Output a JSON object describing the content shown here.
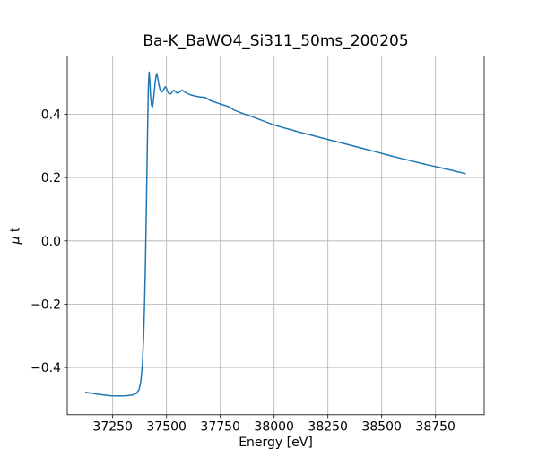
{
  "chart_data": {
    "type": "line",
    "title": "Ba-K_BaWO4_Si311_50ms_200205",
    "xlabel": "Energy [eV]",
    "ylabel": "μ t",
    "ylabel_parts": {
      "mu": "μ",
      "rest": " t"
    },
    "xlim": [
      37038.75,
      38976.25
    ],
    "ylim": [
      -0.549,
      0.584
    ],
    "xticks": [
      37250,
      37500,
      37750,
      38000,
      38250,
      38500,
      38750
    ],
    "xtick_labels": [
      "37250",
      "37500",
      "37750",
      "38000",
      "38250",
      "38500",
      "38750"
    ],
    "yticks": [
      -0.4,
      -0.2,
      0.0,
      0.2,
      0.4
    ],
    "ytick_labels": [
      "−0.4",
      "−0.2",
      "0.0",
      "0.2",
      "0.4"
    ],
    "grid": true,
    "legend": false,
    "line_color": "#1f77b4",
    "line_width": 1.5,
    "grid_color": "#b0b0b0",
    "spine_color": "#000000",
    "background_color": "#ffffff",
    "series": [
      {
        "name": "mu_t_vs_energy",
        "points": [
          [
            37125,
            -0.478
          ],
          [
            37160,
            -0.482
          ],
          [
            37200,
            -0.486
          ],
          [
            37240,
            -0.489
          ],
          [
            37280,
            -0.49
          ],
          [
            37312,
            -0.489
          ],
          [
            37340,
            -0.487
          ],
          [
            37360,
            -0.482
          ],
          [
            37372,
            -0.47
          ],
          [
            37381,
            -0.443
          ],
          [
            37388,
            -0.39
          ],
          [
            37393,
            -0.315
          ],
          [
            37398,
            -0.2
          ],
          [
            37402,
            -0.07
          ],
          [
            37406,
            0.08
          ],
          [
            37410,
            0.26
          ],
          [
            37413,
            0.39
          ],
          [
            37416,
            0.49
          ],
          [
            37419,
            0.533
          ],
          [
            37422,
            0.51
          ],
          [
            37426,
            0.458
          ],
          [
            37430,
            0.43
          ],
          [
            37434,
            0.422
          ],
          [
            37438,
            0.435
          ],
          [
            37443,
            0.47
          ],
          [
            37448,
            0.505
          ],
          [
            37452,
            0.523
          ],
          [
            37455,
            0.526
          ],
          [
            37459,
            0.515
          ],
          [
            37464,
            0.495
          ],
          [
            37470,
            0.478
          ],
          [
            37476,
            0.47
          ],
          [
            37482,
            0.472
          ],
          [
            37488,
            0.48
          ],
          [
            37494,
            0.487
          ],
          [
            37499,
            0.482
          ],
          [
            37505,
            0.472
          ],
          [
            37511,
            0.4655
          ],
          [
            37517,
            0.4635
          ],
          [
            37523,
            0.467
          ],
          [
            37529,
            0.473
          ],
          [
            37535,
            0.476
          ],
          [
            37541,
            0.472
          ],
          [
            37547,
            0.4675
          ],
          [
            37553,
            0.466
          ],
          [
            37560,
            0.47
          ],
          [
            37568,
            0.4745
          ],
          [
            37575,
            0.4755
          ],
          [
            37583,
            0.4715
          ],
          [
            37591,
            0.4675
          ],
          [
            37599,
            0.465
          ],
          [
            37613,
            0.461
          ],
          [
            37628,
            0.458
          ],
          [
            37643,
            0.456
          ],
          [
            37658,
            0.4545
          ],
          [
            37673,
            0.4535
          ],
          [
            37685,
            0.451
          ],
          [
            37698,
            0.445
          ],
          [
            37713,
            0.4405
          ],
          [
            37728,
            0.4375
          ],
          [
            37748,
            0.4325
          ],
          [
            37768,
            0.4285
          ],
          [
            37790,
            0.4235
          ],
          [
            37812,
            0.414
          ],
          [
            37836,
            0.407
          ],
          [
            37860,
            0.401
          ],
          [
            37885,
            0.3955
          ],
          [
            37910,
            0.389
          ],
          [
            37935,
            0.3825
          ],
          [
            37960,
            0.376
          ],
          [
            38000,
            0.366
          ],
          [
            38040,
            0.358
          ],
          [
            38080,
            0.3505
          ],
          [
            38120,
            0.343
          ],
          [
            38160,
            0.336
          ],
          [
            38200,
            0.329
          ],
          [
            38240,
            0.322
          ],
          [
            38280,
            0.315
          ],
          [
            38320,
            0.308
          ],
          [
            38360,
            0.301
          ],
          [
            38400,
            0.294
          ],
          [
            38440,
            0.287
          ],
          [
            38480,
            0.28
          ],
          [
            38520,
            0.2725
          ],
          [
            38560,
            0.2655
          ],
          [
            38600,
            0.259
          ],
          [
            38640,
            0.252
          ],
          [
            38680,
            0.2455
          ],
          [
            38720,
            0.239
          ],
          [
            38760,
            0.233
          ],
          [
            38800,
            0.227
          ],
          [
            38840,
            0.2205
          ],
          [
            38888,
            0.2125
          ]
        ]
      }
    ]
  }
}
